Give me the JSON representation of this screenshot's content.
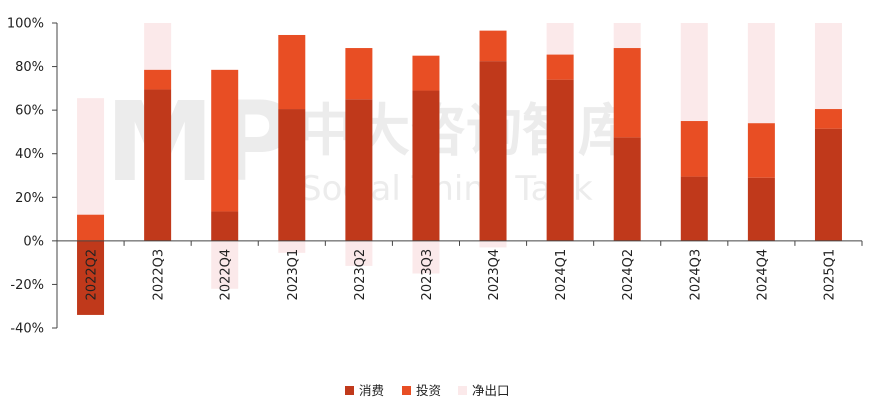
{
  "chart_data": {
    "type": "bar",
    "stacked": true,
    "categories": [
      "2022Q2",
      "2022Q3",
      "2022Q4",
      "2023Q1",
      "2023Q2",
      "2023Q3",
      "2023Q4",
      "2024Q1",
      "2024Q2",
      "2024Q3",
      "2024Q4",
      "2025Q1"
    ],
    "yticks": [
      "100%",
      "80%",
      "60%",
      "40%",
      "20%",
      "0%",
      "-20%",
      "-40%"
    ],
    "ylim": [
      -40,
      100
    ],
    "series": [
      {
        "name": "消费",
        "color": "#c0391b",
        "values": [
          -34,
          69.5,
          13.5,
          60.5,
          65,
          69,
          82.5,
          74,
          47.5,
          29.5,
          29,
          51.5
        ]
      },
      {
        "name": "投资",
        "color": "#e84e24",
        "values": [
          12,
          9,
          65,
          34,
          23.5,
          16,
          14,
          11.5,
          41,
          25.5,
          25,
          9
        ]
      },
      {
        "name": "净出口",
        "color": "#fbe9ea",
        "values": [
          53.5,
          21.5,
          -22,
          -5.5,
          -11.5,
          -15,
          -3,
          14.5,
          11.5,
          45,
          46,
          39.5
        ]
      }
    ],
    "grid": false,
    "legend_position": "bottom"
  },
  "watermark": {
    "logo": "MP",
    "cn": "中大咨询智库",
    "en": "Social Think Tank"
  }
}
